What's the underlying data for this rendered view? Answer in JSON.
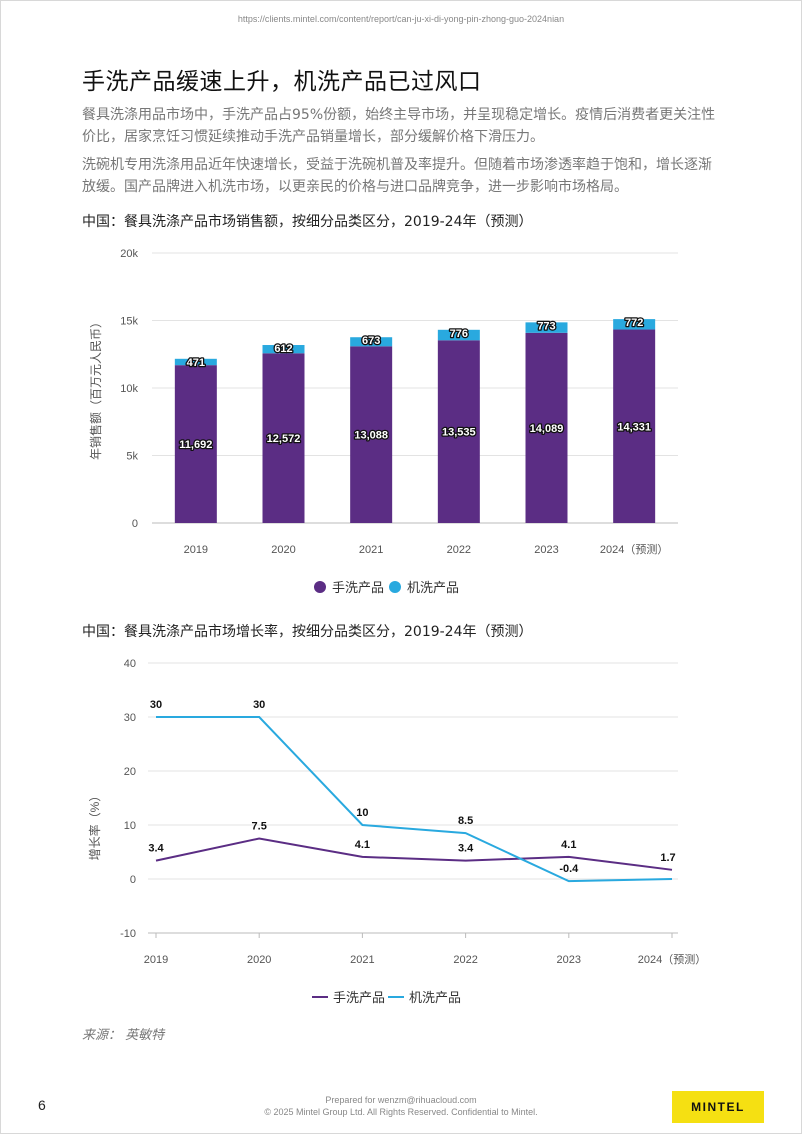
{
  "header": {
    "url": "https://clients.mintel.com/content/report/can-ju-xi-di-yong-pin-zhong-guo-2024nian"
  },
  "page": {
    "title": "手洗产品缓速上升，机洗产品已过风口",
    "paragraphs": [
      "餐具洗涤用品市场中，手洗产品占95%份额，始终主导市场，并呈现稳定增长。疫情后消费者更关注性价比，居家烹饪习惯延续推动手洗产品销量增长，部分缓解价格下滑压力。",
      "洗碗机专用洗涤用品近年快速增长，受益于洗碗机普及率提升。但随着市场渗透率趋于饱和，增长逐渐放缓。国产品牌进入机洗市场，以更亲民的价格与进口品牌竞争，进一步影响市场格局。"
    ],
    "source": "来源： 英敏特",
    "page_number": "6"
  },
  "footer": {
    "line1": "Prepared for wenzm@rihuacloud.com",
    "line2": "© 2025 Mintel Group Ltd. All Rights Reserved. Confidential to Mintel.",
    "logo": "MINTEL"
  },
  "colors": {
    "hand": "#5b2d84",
    "machine": "#29a9df",
    "logo_bg": "#f5e012"
  },
  "chart_data": [
    {
      "type": "bar",
      "stacked": true,
      "title": "中国：餐具洗涤产品市场销售额，按细分品类区分，2019-24年（预测）",
      "ylabel": "年销售额（百万元人民币）",
      "xlabel": "",
      "categories": [
        "2019",
        "2020",
        "2021",
        "2022",
        "2023",
        "2024（预测）"
      ],
      "ylim": [
        0,
        20000
      ],
      "yticks": [
        0,
        5000,
        10000,
        15000,
        20000
      ],
      "ytick_labels": [
        "0",
        "5k",
        "10k",
        "15k",
        "20k"
      ],
      "series": [
        {
          "name": "手洗产品",
          "values": [
            11692,
            12572,
            13088,
            13535,
            14089,
            14331
          ],
          "labels": [
            "11,692",
            "12,572",
            "13,088",
            "13,535",
            "14,089",
            "14,331"
          ]
        },
        {
          "name": "机洗产品",
          "values": [
            471,
            612,
            673,
            776,
            773,
            772
          ],
          "labels": [
            "471",
            "612",
            "673",
            "776",
            "773",
            "772"
          ]
        }
      ],
      "grid": true,
      "legend": "bottom"
    },
    {
      "type": "line",
      "title": "中国：餐具洗涤产品市场增长率，按细分品类区分，2019-24年（预测）",
      "ylabel": "增长率（%）",
      "xlabel": "",
      "categories": [
        "2019",
        "2020",
        "2021",
        "2022",
        "2023",
        "2024（预测）"
      ],
      "ylim": [
        -10,
        40
      ],
      "yticks": [
        -10,
        0,
        10,
        20,
        30,
        40
      ],
      "series": [
        {
          "name": "手洗产品",
          "values": [
            3.4,
            7.5,
            4.1,
            3.4,
            4.1,
            1.7
          ],
          "labels": [
            "3.4",
            "7.5",
            "4.1",
            "3.4",
            "4.1",
            "1.7"
          ]
        },
        {
          "name": "机洗产品",
          "values": [
            30,
            30,
            10,
            8.5,
            -0.4,
            0
          ],
          "labels": [
            "30",
            "30",
            "10",
            "8.5",
            "-0.4",
            ""
          ]
        }
      ],
      "grid": true,
      "legend": "bottom"
    }
  ]
}
